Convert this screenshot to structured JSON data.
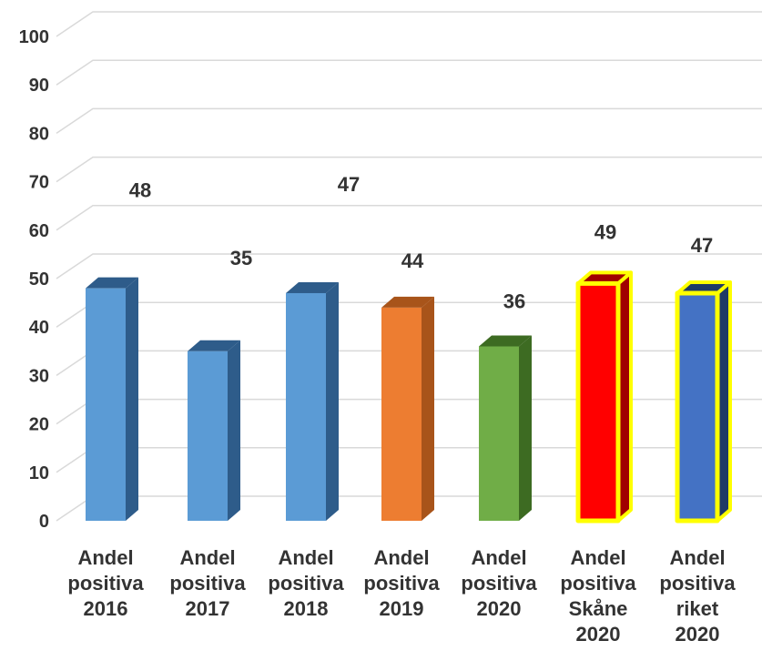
{
  "chart_data": {
    "type": "bar",
    "title": "",
    "xlabel": "",
    "ylabel": "",
    "ylim": [
      0,
      100
    ],
    "yticks": [
      0,
      10,
      20,
      30,
      40,
      50,
      60,
      70,
      80,
      90,
      100
    ],
    "grid": true,
    "style": "3d-columns",
    "categories": [
      [
        "Andel",
        "positiva",
        "2016"
      ],
      [
        "Andel",
        "positiva",
        "2017"
      ],
      [
        "Andel",
        "positiva",
        "2018"
      ],
      [
        "Andel",
        "positiva",
        "2019"
      ],
      [
        "Andel",
        "positiva",
        "2020"
      ],
      [
        "Andel",
        "positiva",
        "Skåne",
        "2020"
      ],
      [
        "Andel",
        "positiva",
        "riket",
        "2020"
      ]
    ],
    "values": [
      48,
      35,
      47,
      44,
      36,
      49,
      47
    ],
    "data_labels": [
      "48",
      "35",
      "47",
      "44",
      "36",
      "49",
      "47"
    ],
    "colors": [
      "#5B9BD5",
      "#5B9BD5",
      "#5B9BD5",
      "#ED7D31",
      "#70AD47",
      "#FF0000",
      "#4472C4"
    ],
    "side_colors": [
      "#2E5C8A",
      "#2E5C8A",
      "#2E5C8A",
      "#A8541A",
      "#3D6B22",
      "#A00000",
      "#1F3A66"
    ],
    "highlight_outline": [
      false,
      false,
      false,
      false,
      false,
      true,
      true
    ],
    "outline_color": "#FFFF00"
  }
}
